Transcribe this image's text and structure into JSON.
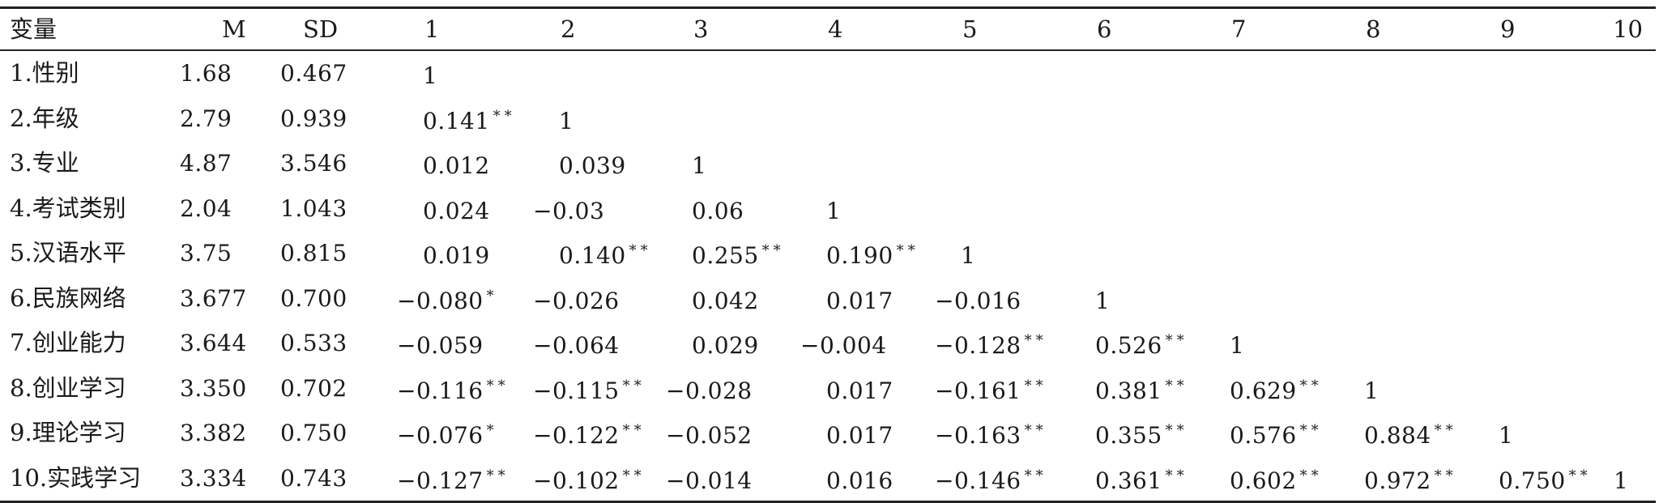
{
  "table": {
    "headers": [
      "变量",
      "M",
      "SD",
      "1",
      "2",
      "3",
      "4",
      "5",
      "6",
      "7",
      "8",
      "9",
      "10"
    ],
    "rows": [
      {
        "name": "1.性别",
        "m": "1.68",
        "sd": "0.467",
        "cells": [
          "1",
          "",
          "",
          "",
          "",
          "",
          "",
          "",
          "",
          ""
        ],
        "sig": [
          "",
          "",
          "",
          "",
          "",
          "",
          "",
          "",
          "",
          ""
        ]
      },
      {
        "name": "2.年级",
        "m": "2.79",
        "sd": "0.939",
        "cells": [
          "0.141",
          "1",
          "",
          "",
          "",
          "",
          "",
          "",
          "",
          ""
        ],
        "sig": [
          "**",
          "",
          "",
          "",
          "",
          "",
          "",
          "",
          "",
          ""
        ]
      },
      {
        "name": "3.专业",
        "m": "4.87",
        "sd": "3.546",
        "cells": [
          "0.012",
          "0.039",
          "1",
          "",
          "",
          "",
          "",
          "",
          "",
          ""
        ],
        "sig": [
          "",
          "",
          "",
          "",
          "",
          "",
          "",
          "",
          "",
          ""
        ]
      },
      {
        "name": "4.考试类别",
        "m": "2.04",
        "sd": "1.043",
        "cells": [
          "0.024",
          "−0.03",
          "0.06",
          "1",
          "",
          "",
          "",
          "",
          "",
          ""
        ],
        "sig": [
          "",
          "",
          "",
          "",
          "",
          "",
          "",
          "",
          "",
          ""
        ]
      },
      {
        "name": "5.汉语水平",
        "m": "3.75",
        "sd": "0.815",
        "cells": [
          "0.019",
          "0.140",
          "0.255",
          "0.190",
          "1",
          "",
          "",
          "",
          "",
          ""
        ],
        "sig": [
          "",
          "**",
          "**",
          "**",
          "",
          "",
          "",
          "",
          "",
          ""
        ]
      },
      {
        "name": "6.民族网络",
        "m": "3.677",
        "sd": "0.700",
        "cells": [
          "−0.080",
          "−0.026",
          "0.042",
          "0.017",
          "−0.016",
          "1",
          "",
          "",
          "",
          ""
        ],
        "sig": [
          "*",
          "",
          "",
          "",
          "",
          "",
          "",
          "",
          "",
          ""
        ]
      },
      {
        "name": "7.创业能力",
        "m": "3.644",
        "sd": "0.533",
        "cells": [
          "−0.059",
          "−0.064",
          "0.029",
          "−0.004",
          "−0.128",
          "0.526",
          "1",
          "",
          "",
          ""
        ],
        "sig": [
          "",
          "",
          "",
          "",
          "**",
          "**",
          "",
          "",
          "",
          ""
        ]
      },
      {
        "name": "8.创业学习",
        "m": "3.350",
        "sd": "0.702",
        "cells": [
          "−0.116",
          "−0.115",
          "−0.028",
          "0.017",
          "−0.161",
          "0.381",
          "0.629",
          "1",
          "",
          ""
        ],
        "sig": [
          "**",
          "**",
          "",
          "",
          "**",
          "**",
          "**",
          "",
          "",
          ""
        ]
      },
      {
        "name": "9.理论学习",
        "m": "3.382",
        "sd": "0.750",
        "cells": [
          "−0.076",
          "−0.122",
          "−0.052",
          "0.017",
          "−0.163",
          "0.355",
          "0.576",
          "0.884",
          "1",
          ""
        ],
        "sig": [
          "*",
          "**",
          "",
          "",
          "**",
          "**",
          "**",
          "**",
          "",
          ""
        ]
      },
      {
        "name": "10.实践学习",
        "m": "3.334",
        "sd": "0.743",
        "cells": [
          "−0.127",
          "−0.102",
          "−0.014",
          "0.016",
          "−0.146",
          "0.361",
          "0.602",
          "0.972",
          "0.750",
          "1"
        ],
        "sig": [
          "**",
          "**",
          "",
          "",
          "**",
          "**",
          "**",
          "**",
          "**",
          ""
        ]
      }
    ]
  }
}
